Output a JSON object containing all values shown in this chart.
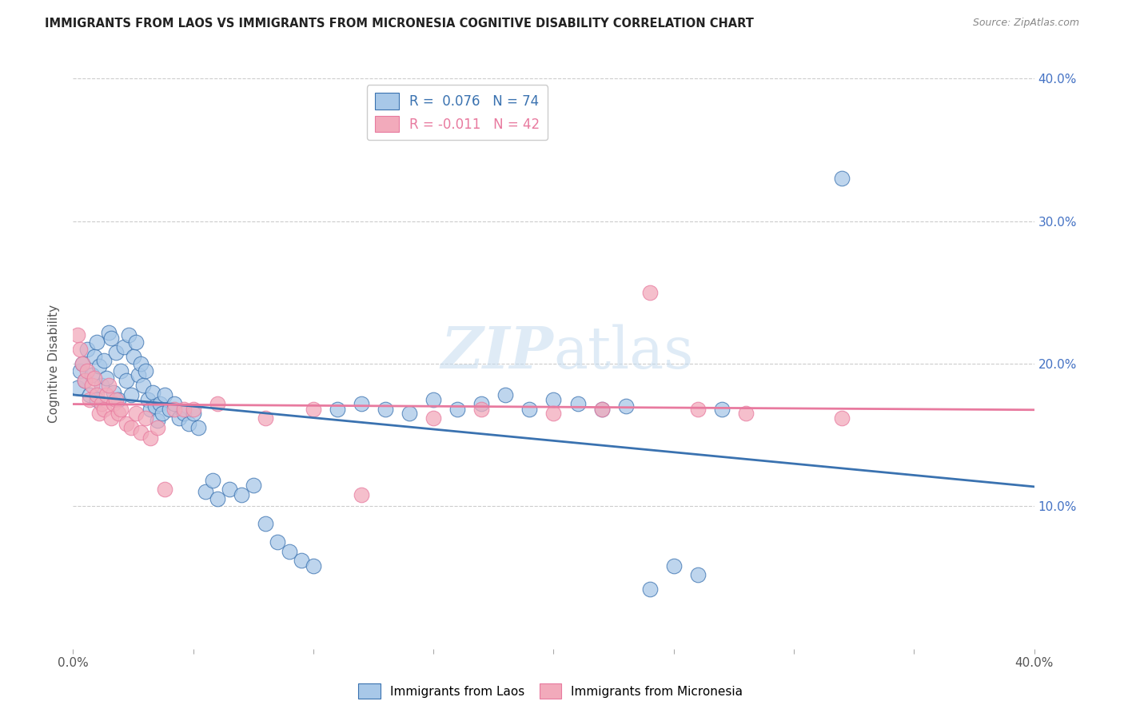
{
  "title": "IMMIGRANTS FROM LAOS VS IMMIGRANTS FROM MICRONESIA COGNITIVE DISABILITY CORRELATION CHART",
  "source": "Source: ZipAtlas.com",
  "ylabel": "Cognitive Disability",
  "xlim": [
    0.0,
    0.4
  ],
  "ylim": [
    0.0,
    0.4
  ],
  "color_laos": "#A8C8E8",
  "color_micronesia": "#F2AABB",
  "line_color_laos": "#3A72B0",
  "line_color_micronesia": "#E87A9F",
  "right_axis_color": "#4472C4",
  "background_color": "#FFFFFF",
  "grid_color": "#CCCCCC",
  "laos_x": [
    0.002,
    0.003,
    0.004,
    0.005,
    0.006,
    0.007,
    0.008,
    0.009,
    0.01,
    0.01,
    0.011,
    0.012,
    0.013,
    0.014,
    0.015,
    0.016,
    0.017,
    0.018,
    0.019,
    0.02,
    0.021,
    0.022,
    0.023,
    0.024,
    0.025,
    0.026,
    0.027,
    0.028,
    0.029,
    0.03,
    0.031,
    0.032,
    0.033,
    0.034,
    0.035,
    0.036,
    0.037,
    0.038,
    0.04,
    0.042,
    0.044,
    0.046,
    0.048,
    0.05,
    0.052,
    0.055,
    0.058,
    0.06,
    0.065,
    0.07,
    0.075,
    0.08,
    0.085,
    0.09,
    0.095,
    0.1,
    0.11,
    0.12,
    0.13,
    0.14,
    0.15,
    0.16,
    0.17,
    0.18,
    0.19,
    0.2,
    0.21,
    0.22,
    0.23,
    0.24,
    0.25,
    0.26,
    0.27,
    0.32
  ],
  "laos_y": [
    0.183,
    0.195,
    0.2,
    0.188,
    0.21,
    0.178,
    0.192,
    0.205,
    0.175,
    0.215,
    0.198,
    0.185,
    0.202,
    0.19,
    0.222,
    0.218,
    0.18,
    0.208,
    0.175,
    0.195,
    0.212,
    0.188,
    0.22,
    0.178,
    0.205,
    0.215,
    0.192,
    0.2,
    0.185,
    0.195,
    0.175,
    0.168,
    0.18,
    0.17,
    0.16,
    0.172,
    0.165,
    0.178,
    0.168,
    0.172,
    0.162,
    0.165,
    0.158,
    0.165,
    0.155,
    0.11,
    0.118,
    0.105,
    0.112,
    0.108,
    0.115,
    0.088,
    0.075,
    0.068,
    0.062,
    0.058,
    0.168,
    0.172,
    0.168,
    0.165,
    0.175,
    0.168,
    0.172,
    0.178,
    0.168,
    0.175,
    0.172,
    0.168,
    0.17,
    0.042,
    0.058,
    0.052,
    0.168,
    0.33
  ],
  "micronesia_x": [
    0.002,
    0.003,
    0.004,
    0.005,
    0.006,
    0.007,
    0.008,
    0.009,
    0.01,
    0.011,
    0.012,
    0.013,
    0.014,
    0.015,
    0.016,
    0.017,
    0.018,
    0.019,
    0.02,
    0.022,
    0.024,
    0.026,
    0.028,
    0.03,
    0.032,
    0.035,
    0.038,
    0.042,
    0.046,
    0.05,
    0.06,
    0.08,
    0.1,
    0.12,
    0.15,
    0.17,
    0.2,
    0.22,
    0.24,
    0.26,
    0.28,
    0.32
  ],
  "micronesia_y": [
    0.22,
    0.21,
    0.2,
    0.188,
    0.195,
    0.175,
    0.185,
    0.19,
    0.178,
    0.165,
    0.172,
    0.168,
    0.178,
    0.185,
    0.162,
    0.172,
    0.175,
    0.165,
    0.168,
    0.158,
    0.155,
    0.165,
    0.152,
    0.162,
    0.148,
    0.155,
    0.112,
    0.168,
    0.168,
    0.168,
    0.172,
    0.162,
    0.168,
    0.108,
    0.162,
    0.168,
    0.165,
    0.168,
    0.25,
    0.168,
    0.165,
    0.162
  ]
}
